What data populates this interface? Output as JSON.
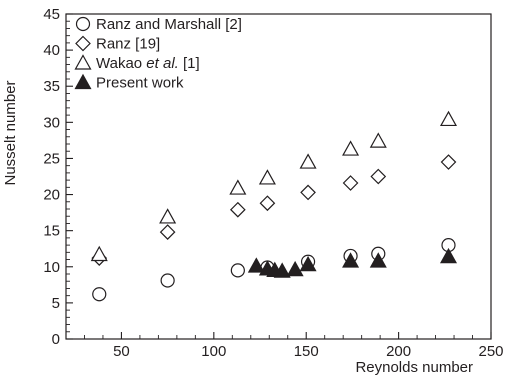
{
  "chart_data": {
    "type": "scatter",
    "xlabel": "Reynolds number",
    "ylabel": "Nusselt number",
    "xlim": [
      20,
      250
    ],
    "ylim": [
      0,
      45
    ],
    "xticks": [
      50,
      100,
      150,
      200,
      250
    ],
    "yticks": [
      0,
      5,
      10,
      15,
      20,
      25,
      30,
      35,
      40,
      45
    ],
    "x_minor_step": 10,
    "y_minor_step": 1,
    "grid": false,
    "legend_position": "top-left",
    "series": [
      {
        "name": "Ranz and Marshall [2]",
        "marker": "circle-open",
        "points": [
          [
            38,
            6.2
          ],
          [
            75,
            8.1
          ],
          [
            113,
            9.5
          ],
          [
            129,
            9.9
          ],
          [
            151,
            10.7
          ],
          [
            174,
            11.5
          ],
          [
            189,
            11.8
          ],
          [
            227,
            13.0
          ]
        ]
      },
      {
        "name": "Ranz [19]",
        "marker": "diamond-open",
        "points": [
          [
            38,
            11.2
          ],
          [
            75,
            14.8
          ],
          [
            113,
            17.9
          ],
          [
            129,
            18.8
          ],
          [
            151,
            20.3
          ],
          [
            174,
            21.6
          ],
          [
            189,
            22.5
          ],
          [
            227,
            24.5
          ]
        ]
      },
      {
        "name": "Wakao et al. [1]",
        "name_parts": [
          "Wakao ",
          "et al.",
          " [1]"
        ],
        "marker": "triangle-open",
        "points": [
          [
            38,
            11.7
          ],
          [
            75,
            16.9
          ],
          [
            113,
            20.9
          ],
          [
            129,
            22.3
          ],
          [
            151,
            24.5
          ],
          [
            174,
            26.3
          ],
          [
            189,
            27.4
          ],
          [
            227,
            30.4
          ]
        ]
      },
      {
        "name": "Present work",
        "marker": "triangle-filled",
        "points": [
          [
            123,
            10.1
          ],
          [
            129,
            9.7
          ],
          [
            133,
            9.5
          ],
          [
            137,
            9.4
          ],
          [
            144,
            9.6
          ],
          [
            151,
            10.3
          ],
          [
            174,
            10.8
          ],
          [
            189,
            10.8
          ],
          [
            227,
            11.4
          ]
        ]
      }
    ]
  },
  "colors": {
    "ink": "#231f20",
    "background": "#ffffff"
  }
}
